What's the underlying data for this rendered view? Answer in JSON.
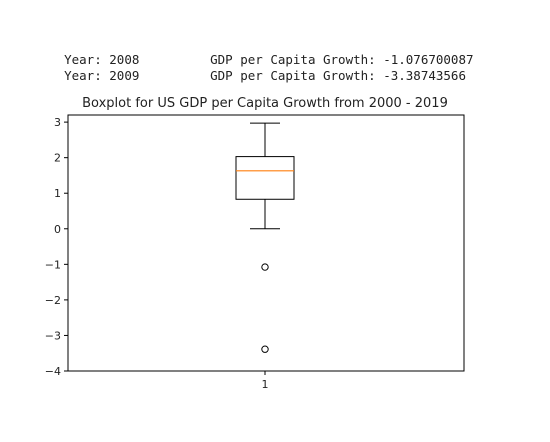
{
  "output_lines": [
    {
      "year_text": "Year: 2008",
      "gdp_text": "GDP per Capita Growth: -1.076700087"
    },
    {
      "year_text": "Year: 2009",
      "gdp_text": "GDP per Capita Growth: -3.38743566"
    }
  ],
  "chart_data": {
    "type": "boxplot",
    "title": "Boxplot for US GDP per Capita Growth from 2000 - 2019",
    "xlabel": "",
    "ylabel": "",
    "categories": [
      "1"
    ],
    "ylim": [
      -4,
      3.2
    ],
    "yticks": [
      3,
      2,
      1,
      0,
      -1,
      -2,
      -3,
      -4
    ],
    "ytick_labels": [
      "3",
      "2",
      "1",
      "0",
      "−1",
      "−2",
      "−3",
      "−4"
    ],
    "grid": false,
    "box": {
      "whisker_low": 0.0,
      "q1": 0.83,
      "median": 1.63,
      "q3": 2.03,
      "whisker_high": 2.97
    },
    "outliers": [
      -1.0767,
      -3.3874
    ],
    "colors": {
      "median": "#ff7f0e",
      "box": "#000000",
      "axes": "#000000"
    }
  }
}
